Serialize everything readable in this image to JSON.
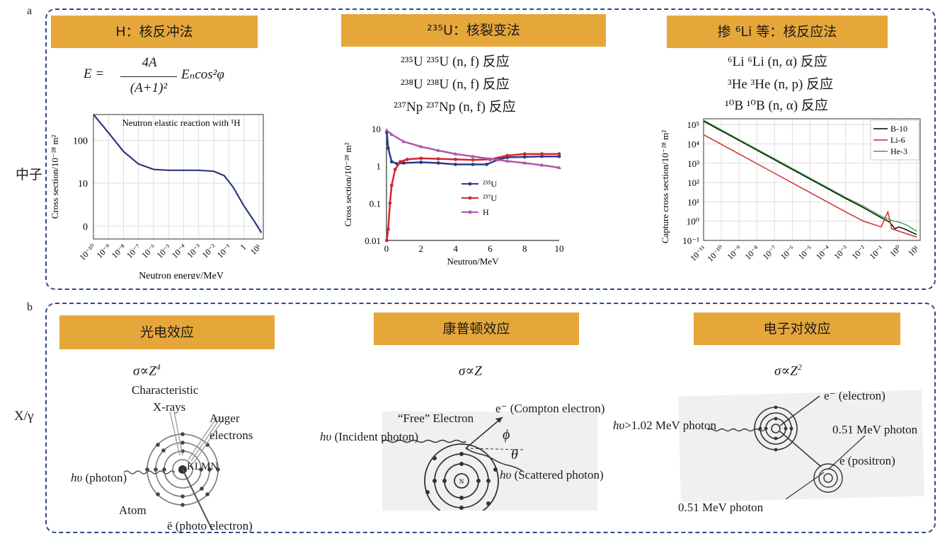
{
  "panel_a": {
    "label": "a",
    "row_label": "中子",
    "col1": {
      "header": "H：核反冲法",
      "formula": {
        "lhs": "E =",
        "numerator": "4A",
        "denominator": "(A+1)²",
        "rhs": "Eₙcos²φ"
      },
      "chart_data": {
        "type": "line",
        "title": "Neutron elastic reaction with ¹H",
        "xlabel": "Neutron energy/MeV",
        "ylabel": "Cross section/10⁻²⁸ m²",
        "x_tick_labels": [
          "10⁻¹⁰",
          "10⁻⁹",
          "10⁻⁸",
          "10⁻⁷",
          "10⁻⁶",
          "10⁻⁵",
          "10⁻⁴",
          "10⁻³",
          "10⁻²",
          "10⁻¹",
          "1",
          "10¹"
        ],
        "y_tick_labels": [
          "100",
          "10",
          "0"
        ],
        "x_scale": "log",
        "grid": true,
        "series": [
          {
            "points": [
              [
                1e-10,
                400
              ],
              [
                1e-09,
                150
              ],
              [
                1e-08,
                55
              ],
              [
                1e-07,
                28
              ],
              [
                1e-06,
                21
              ],
              [
                1e-05,
                20
              ],
              [
                0.0001,
                20
              ],
              [
                0.001,
                20
              ],
              [
                0.01,
                19
              ],
              [
                0.05,
                15
              ],
              [
                0.2,
                8
              ],
              [
                1,
                3
              ],
              [
                5,
                1.3
              ],
              [
                15,
                0.7
              ]
            ]
          }
        ]
      }
    },
    "col2": {
      "header": "²³⁵U：核裂变法",
      "reactions": [
        "²³⁵U ²³⁵U (n, f) 反应",
        "²³⁸U ²³⁸U (n, f) 反应",
        "²³⁷Np ²³⁷Np (n, f) 反应"
      ],
      "chart_data": {
        "type": "line",
        "xlabel": "Neutron/MeV",
        "ylabel": "Cross section/10⁻²⁸ m²",
        "x_tick_labels": [
          "0",
          "2",
          "4",
          "6",
          "8",
          "10"
        ],
        "y_tick_labels": [
          "10",
          "1",
          "0.1",
          "0.01"
        ],
        "xlim": [
          0,
          10
        ],
        "ylim": [
          0.01,
          10
        ],
        "y_scale": "log",
        "legend_position": "center-right",
        "series": [
          {
            "name": "²³⁵U",
            "color": "#2a3a8c",
            "points": [
              [
                0.02,
                8
              ],
              [
                0.1,
                3
              ],
              [
                0.3,
                1.3
              ],
              [
                0.6,
                1.15
              ],
              [
                1,
                1.2
              ],
              [
                2,
                1.25
              ],
              [
                3,
                1.2
              ],
              [
                4,
                1.1
              ],
              [
                5,
                1.1
              ],
              [
                5.8,
                1.1
              ],
              [
                6.5,
                1.5
              ],
              [
                7,
                1.7
              ],
              [
                8,
                1.75
              ],
              [
                9,
                1.8
              ],
              [
                10,
                1.8
              ]
            ]
          },
          {
            "name": "²³⁷U",
            "color": "#d2262b",
            "points": [
              [
                0.02,
                0.01
              ],
              [
                0.1,
                0.02
              ],
              [
                0.2,
                0.1
              ],
              [
                0.3,
                0.3
              ],
              [
                0.5,
                0.8
              ],
              [
                0.8,
                1.3
              ],
              [
                1.2,
                1.5
              ],
              [
                2,
                1.6
              ],
              [
                3,
                1.55
              ],
              [
                4,
                1.5
              ],
              [
                5,
                1.45
              ],
              [
                6,
                1.5
              ],
              [
                7,
                1.9
              ],
              [
                8,
                2.1
              ],
              [
                9,
                2.1
              ],
              [
                10,
                2.1
              ]
            ]
          },
          {
            "name": "H",
            "color": "#b056a8",
            "points": [
              [
                0.02,
                9
              ],
              [
                0.3,
                7
              ],
              [
                1,
                4.5
              ],
              [
                2,
                3.3
              ],
              [
                3,
                2.6
              ],
              [
                4,
                2.1
              ],
              [
                5,
                1.8
              ],
              [
                6,
                1.55
              ],
              [
                7,
                1.35
              ],
              [
                8,
                1.2
              ],
              [
                9,
                1.05
              ],
              [
                10,
                0.9
              ]
            ]
          }
        ]
      }
    },
    "col3": {
      "header": "掺 ⁶Li 等：核反应法",
      "reactions": [
        "⁶Li ⁶Li (n, α) 反应",
        "³He ³He (n, p) 反应",
        "¹⁰B ¹⁰B (n, α) 反应"
      ],
      "chart_data": {
        "type": "line",
        "xlabel": "",
        "ylabel": "Capture cross section/10⁻²⁸ m²",
        "x_tick_labels": [
          "10⁻¹¹",
          "10⁻¹⁰",
          "10⁻⁹",
          "10⁻⁸",
          "10⁻⁷",
          "10⁻⁶",
          "10⁻⁵",
          "10⁻⁴",
          "10⁻³",
          "10⁻²",
          "10⁻¹",
          "10⁰",
          "10¹"
        ],
        "y_tick_labels": [
          "10⁵",
          "10⁴",
          "10³",
          "10²",
          "10¹",
          "10⁰",
          "10⁻¹"
        ],
        "x_scale": "log",
        "y_scale": "log",
        "legend_position": "top-right",
        "grid": true,
        "series": [
          {
            "name": "B-10",
            "color": "#000000",
            "points": [
              [
                1e-11,
                150000
              ],
              [
                1e-09,
                15000
              ],
              [
                1e-07,
                1500
              ],
              [
                1e-05,
                150
              ],
              [
                0.001,
                15
              ],
              [
                0.01,
                5
              ],
              [
                0.1,
                1.5
              ],
              [
                0.3,
                0.9
              ],
              [
                0.6,
                0.4
              ],
              [
                1,
                0.5
              ],
              [
                2,
                0.4
              ],
              [
                10,
                0.2
              ]
            ]
          },
          {
            "name": "Li-6",
            "color": "#d32222",
            "points": [
              [
                1e-11,
                30000
              ],
              [
                1e-09,
                3000
              ],
              [
                1e-07,
                300
              ],
              [
                1e-05,
                30
              ],
              [
                0.001,
                3
              ],
              [
                0.01,
                1
              ],
              [
                0.1,
                0.5
              ],
              [
                0.24,
                3
              ],
              [
                0.4,
                0.4
              ],
              [
                1,
                0.3
              ],
              [
                10,
                0.15
              ]
            ]
          },
          {
            "name": "He-3",
            "color": "#3aa43a",
            "points": [
              [
                1e-11,
                170000
              ],
              [
                1e-09,
                17000
              ],
              [
                1e-07,
                1700
              ],
              [
                1e-05,
                170
              ],
              [
                0.001,
                17
              ],
              [
                0.01,
                6
              ],
              [
                0.1,
                1.8
              ],
              [
                0.5,
                1
              ],
              [
                1,
                0.9
              ],
              [
                3,
                0.6
              ],
              [
                10,
                0.3
              ]
            ]
          }
        ]
      }
    }
  },
  "panel_b": {
    "label": "b",
    "row_label": "X/γ",
    "col1": {
      "header": "光电效应",
      "formula": {
        "base": "σ∝Z",
        "exp": "4"
      },
      "labels": {
        "characteristic": "Characteristic",
        "xrays": "X-rays",
        "auger": "Auger",
        "electrons": "electrons",
        "photon": "(photon)",
        "hv": "hυ",
        "shells": "KLMN",
        "atom": "Atom",
        "photo_electron": "ē (photo electron)"
      }
    },
    "col2": {
      "header": "康普顿效应",
      "formula": {
        "base": "σ∝Z",
        "exp": ""
      },
      "labels": {
        "free_electron": "“Free” Electron",
        "compton": "e⁻ (Compton electron)",
        "incident": "(Incident photon)",
        "hv": "hυ",
        "phi": "ϕ",
        "theta": "θ",
        "scattered": "(Scattered photon)"
      }
    },
    "col3": {
      "header": "电子对效应",
      "formula": {
        "base": "σ∝Z",
        "exp": "2"
      },
      "labels": {
        "electron": "e⁻ (electron)",
        "hv": "hυ",
        "incident": ">1.02 MeV photon",
        "photon_right": "0.51 MeV photon",
        "positron": "e (positron)",
        "photon_bottom": "0.51 MeV photon"
      }
    }
  },
  "colors": {
    "header": "#e6a73a",
    "panel_border": "#2e4a86"
  }
}
